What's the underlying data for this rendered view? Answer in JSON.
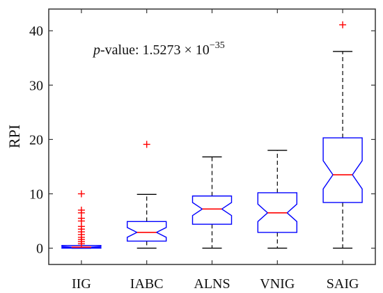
{
  "chart_data": {
    "type": "boxplot",
    "title": "",
    "xlabel": "",
    "ylabel": "RPI",
    "ylim": [
      -3,
      44
    ],
    "yticks": [
      0,
      10,
      20,
      30,
      40
    ],
    "categories": [
      "IIG",
      "IABC",
      "ALNS",
      "VNIG",
      "SAIG"
    ],
    "grid": false,
    "legend": "none",
    "annotation": {
      "prefix": "p",
      "middle": "-value: 1.5273 × 10",
      "exponent": "−35"
    },
    "colors": {
      "box": "#0000ff",
      "median": "#ff0000",
      "whisker": "#000000",
      "outlier": "#ff0000",
      "axis": "#333333"
    },
    "boxes": [
      {
        "category": "IIG",
        "q1": 0.0,
        "median": 0.2,
        "q3": 0.5,
        "whisker_low": 0.0,
        "whisker_high": 0.5,
        "notch_low": 0.1,
        "notch_high": 0.3,
        "outliers": [
          0.8,
          1.2,
          1.6,
          2.0,
          2.5,
          3.0,
          3.5,
          4.0,
          5.0,
          5.5,
          6.5,
          7.0,
          10.0
        ]
      },
      {
        "category": "IABC",
        "q1": 1.3,
        "median": 2.9,
        "q3": 4.9,
        "whisker_low": 0.0,
        "whisker_high": 9.9,
        "notch_low": 2.0,
        "notch_high": 3.8,
        "outliers": [
          19.1
        ]
      },
      {
        "category": "ALNS",
        "q1": 4.4,
        "median": 7.2,
        "q3": 9.6,
        "whisker_low": 0.0,
        "whisker_high": 16.8,
        "notch_low": 6.0,
        "notch_high": 8.4,
        "outliers": []
      },
      {
        "category": "VNIG",
        "q1": 2.9,
        "median": 6.5,
        "q3": 10.2,
        "whisker_low": 0.0,
        "whisker_high": 18.0,
        "notch_low": 4.9,
        "notch_high": 8.1,
        "outliers": []
      },
      {
        "category": "SAIG",
        "q1": 8.4,
        "median": 13.5,
        "q3": 20.3,
        "whisker_low": 0.0,
        "whisker_high": 36.2,
        "notch_low": 10.9,
        "notch_high": 16.1,
        "outliers": [
          41.1
        ]
      }
    ]
  }
}
